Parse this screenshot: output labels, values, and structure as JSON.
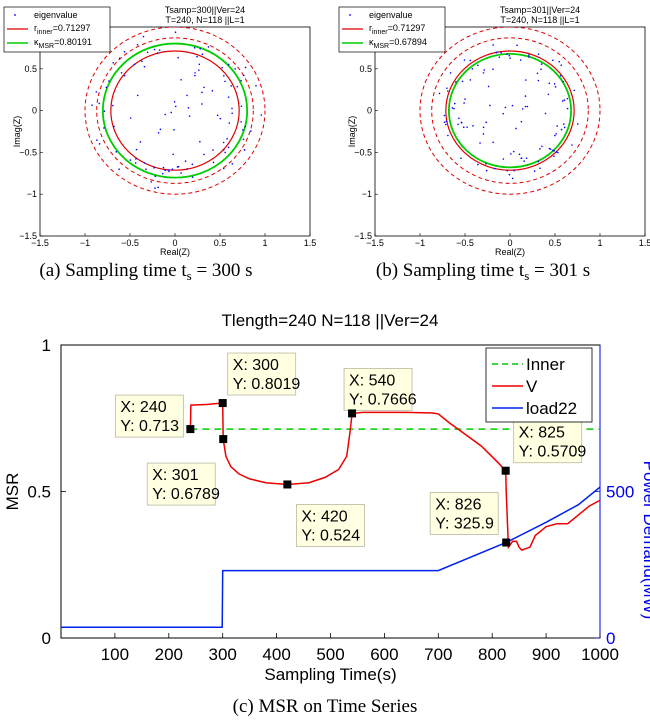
{
  "chart_data": [
    {
      "type": "scatter",
      "title_line1": "Tsamp=300||Ver=24",
      "title_line2": "T=240, N=118  ||L=1",
      "xlabel": "Real(Z)",
      "ylabel": "Imag(Z)",
      "xlim": [
        -1.5,
        1.5
      ],
      "ylim": [
        -1.5,
        1.0
      ],
      "xticks": [
        "−1.5",
        "−1",
        "−0.5",
        "0",
        "0.5",
        "1",
        "1.5"
      ],
      "yticks": [
        "−1.5",
        "−1",
        "−0.5",
        "0",
        "0.5",
        "1"
      ],
      "legend": {
        "eigen": "eigenvalue",
        "r_pre": "r",
        "r_sub": "inner",
        "r_val": "=0.71297",
        "k_pre": "κ",
        "k_sub": "MSR",
        "k_val": "=0.80191"
      },
      "r_inner": 0.71297,
      "kappa_msr": 0.80191,
      "outer_radius": 1.0,
      "caption": "(a) Sampling time t",
      "caption_sub": "s",
      "caption_tail": " = 300  s",
      "colors": {
        "eigen": "#0000ff",
        "inner": "#dd0000",
        "msr": "#00cc00"
      }
    },
    {
      "type": "scatter",
      "title_line1": "Tsamp=301||Ver=24",
      "title_line2": "T=240, N=118  ||L=1",
      "xlabel": "Real(Z)",
      "ylabel": "Imag(Z)",
      "xlim": [
        -1.5,
        1.5
      ],
      "ylim": [
        -1.5,
        1.0
      ],
      "xticks": [
        "−1.5",
        "−1",
        "−0.5",
        "0",
        "0.5",
        "1",
        "1.5"
      ],
      "yticks": [
        "−1.5",
        "−1",
        "−0.5",
        "0",
        "0.5",
        "1"
      ],
      "legend": {
        "eigen": "eigenvalue",
        "r_pre": "r",
        "r_sub": "inner",
        "r_val": "=0.71297",
        "k_pre": "κ",
        "k_sub": "MSR",
        "k_val": "=0.67894"
      },
      "r_inner": 0.71297,
      "kappa_msr": 0.67894,
      "outer_radius": 1.0,
      "caption": "(b) Sampling time t",
      "caption_sub": "s",
      "caption_tail": " = 301  s",
      "colors": {
        "eigen": "#0000ff",
        "inner": "#dd0000",
        "msr": "#00cc00"
      }
    },
    {
      "type": "line",
      "title": "Tlength=240  N=118 ||Ver=24",
      "xlabel": "Sampling Time(s)",
      "ylabel": "MSR",
      "y2label": "Power Demand(MW)",
      "xlim": [
        0,
        1000
      ],
      "ylim": [
        0,
        1
      ],
      "y2lim": [
        0,
        1000
      ],
      "xticks": [
        "100",
        "200",
        "300",
        "400",
        "500",
        "600",
        "700",
        "800",
        "900",
        "1000"
      ],
      "yticks": [
        "0",
        "0.5",
        "1"
      ],
      "y2ticks": [
        "0",
        "500"
      ],
      "legend": [
        "Inner",
        "V",
        "load22"
      ],
      "legend_position": "top-right",
      "series": [
        {
          "name": "Inner",
          "color": "#00cc00",
          "style": "dashed",
          "points": [
            [
              240,
              0.713
            ],
            [
              1000,
              0.713
            ]
          ]
        },
        {
          "name": "V",
          "color": "#ee0000",
          "style": "solid",
          "points": [
            [
              240,
              0.713
            ],
            [
              241,
              0.795
            ],
            [
              270,
              0.797
            ],
            [
              299,
              0.8019
            ],
            [
              300,
              0.8019
            ],
            [
              301,
              0.6789
            ],
            [
              306,
              0.62
            ],
            [
              315,
              0.585
            ],
            [
              330,
              0.56
            ],
            [
              350,
              0.543
            ],
            [
              380,
              0.53
            ],
            [
              420,
              0.524
            ],
            [
              460,
              0.53
            ],
            [
              490,
              0.548
            ],
            [
              515,
              0.575
            ],
            [
              530,
              0.62
            ],
            [
              536,
              0.7
            ],
            [
              540,
              0.7666
            ],
            [
              560,
              0.77
            ],
            [
              600,
              0.77
            ],
            [
              640,
              0.77
            ],
            [
              690,
              0.768
            ],
            [
              700,
              0.765
            ],
            [
              720,
              0.735
            ],
            [
              750,
              0.695
            ],
            [
              780,
              0.655
            ],
            [
              810,
              0.6
            ],
            [
              825,
              0.5709
            ],
            [
              826,
              0.5
            ],
            [
              830,
              0.31
            ],
            [
              838,
              0.33
            ],
            [
              845,
              0.33
            ],
            [
              850,
              0.31
            ],
            [
              855,
              0.3
            ],
            [
              870,
              0.31
            ],
            [
              880,
              0.35
            ],
            [
              900,
              0.38
            ],
            [
              920,
              0.39
            ],
            [
              940,
              0.39
            ],
            [
              960,
              0.42
            ],
            [
              980,
              0.45
            ],
            [
              1000,
              0.47
            ]
          ]
        },
        {
          "name": "load22",
          "color": "#0022ee",
          "style": "solid",
          "axis": "right",
          "points": [
            [
              0,
              37
            ],
            [
              299,
              37
            ],
            [
              300,
              230
            ],
            [
              700,
              230
            ],
            [
              826,
              325.9
            ],
            [
              900,
              395
            ],
            [
              960,
              455
            ],
            [
              1000,
              515
            ]
          ]
        }
      ],
      "datatips": [
        {
          "x_label": "X: 240",
          "y_label": "Y: 0.713",
          "x": 240,
          "y": 0.713,
          "axis": "left"
        },
        {
          "x_label": "X: 300",
          "y_label": "Y: 0.8019",
          "x": 300,
          "y": 0.8019,
          "axis": "left"
        },
        {
          "x_label": "X: 301",
          "y_label": "Y: 0.6789",
          "x": 301,
          "y": 0.6789,
          "axis": "left"
        },
        {
          "x_label": "X: 420",
          "y_label": "Y: 0.524",
          "x": 420,
          "y": 0.524,
          "axis": "left"
        },
        {
          "x_label": "X: 540",
          "y_label": "Y: 0.7666",
          "x": 540,
          "y": 0.7666,
          "axis": "left"
        },
        {
          "x_label": "X: 825",
          "y_label": "Y: 0.5709",
          "x": 825,
          "y": 0.5709,
          "axis": "left"
        },
        {
          "x_label": "X: 826",
          "y_label": "Y: 325.9",
          "x": 826,
          "y": 325.9,
          "axis": "right"
        }
      ],
      "caption": "(c) MSR on Time Series"
    }
  ]
}
